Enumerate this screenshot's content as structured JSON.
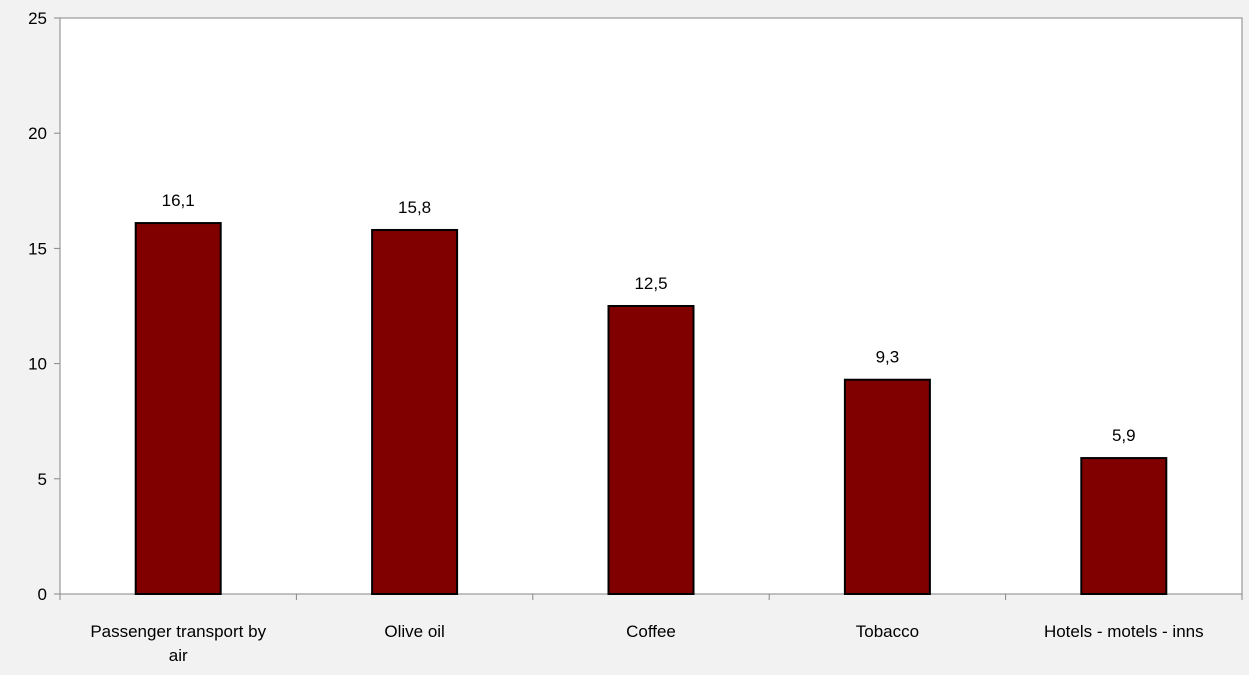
{
  "chart_data": {
    "type": "bar",
    "categories": [
      "Passenger transport by air",
      "Olive oil",
      "Coffee",
      "Tobacco",
      "Hotels - motels - inns"
    ],
    "category_label_lines": [
      [
        "Passenger transport by",
        "air"
      ],
      [
        "Olive oil"
      ],
      [
        "Coffee"
      ],
      [
        "Tobacco"
      ],
      [
        "Hotels - motels - inns"
      ]
    ],
    "values": [
      16.1,
      15.8,
      12.5,
      9.3,
      5.9
    ],
    "data_labels": [
      "16,1",
      "15,8",
      "12,5",
      "9,3",
      "5,9"
    ],
    "yticks": [
      0,
      5,
      10,
      15,
      20,
      25
    ],
    "ylim": [
      0,
      25
    ],
    "title": "",
    "xlabel": "",
    "ylabel": "",
    "grid": false,
    "bar_color": "#800000",
    "plot_background": "#ffffff",
    "page_background": "#f2f2f2"
  }
}
